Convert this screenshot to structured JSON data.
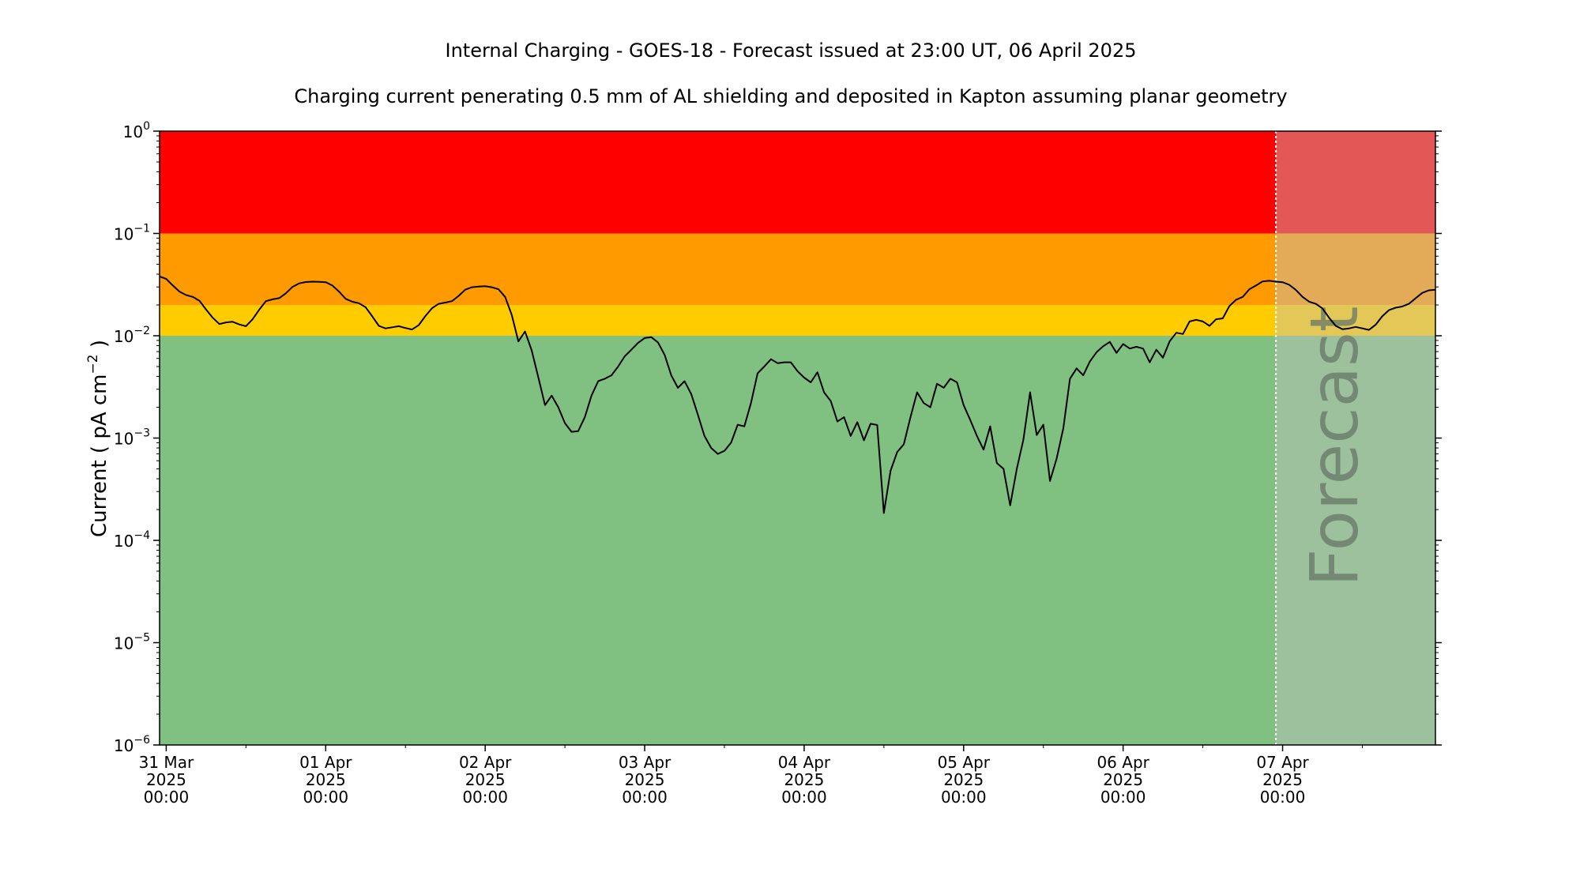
{
  "chart_data": {
    "type": "line",
    "title": "Internal Charging - GOES-18 - Forecast issued at 23:00 UT, 06 April 2025",
    "subtitle": "Charging current penerating 0.5 mm of AL shielding and deposited in Kapton assuming planar geometry",
    "ylabel": "Current ( pA cm",
    "ylabel_exp": "−2",
    "ylabel_close": " )",
    "yscale": "log",
    "ylim": [
      1e-06,
      1
    ],
    "xlim": [
      "2025-03-30 23:00",
      "2025-04-07 23:00"
    ],
    "y_ticks": [
      {
        "value": 1e-06,
        "base": "10",
        "exp": "−6"
      },
      {
        "value": 1e-05,
        "base": "10",
        "exp": "−5"
      },
      {
        "value": 0.0001,
        "base": "10",
        "exp": "−4"
      },
      {
        "value": 0.001,
        "base": "10",
        "exp": "−3"
      },
      {
        "value": 0.01,
        "base": "10",
        "exp": "−2"
      },
      {
        "value": 0.1,
        "base": "10",
        "exp": "−1"
      },
      {
        "value": 1,
        "base": "10",
        "exp": "0"
      }
    ],
    "x_ticks": [
      {
        "time": "2025-03-31 00:00",
        "label": [
          "31 Mar",
          "2025",
          "00:00"
        ]
      },
      {
        "time": "2025-04-01 00:00",
        "label": [
          "01 Apr",
          "2025",
          "00:00"
        ]
      },
      {
        "time": "2025-04-02 00:00",
        "label": [
          "02 Apr",
          "2025",
          "00:00"
        ]
      },
      {
        "time": "2025-04-03 00:00",
        "label": [
          "03 Apr",
          "2025",
          "00:00"
        ]
      },
      {
        "time": "2025-04-04 00:00",
        "label": [
          "04 Apr",
          "2025",
          "00:00"
        ]
      },
      {
        "time": "2025-04-05 00:00",
        "label": [
          "05 Apr",
          "2025",
          "00:00"
        ]
      },
      {
        "time": "2025-04-06 00:00",
        "label": [
          "06 Apr",
          "2025",
          "00:00"
        ]
      },
      {
        "time": "2025-04-07 00:00",
        "label": [
          "07 Apr",
          "2025",
          "00:00"
        ]
      }
    ],
    "bands": [
      {
        "from": 0.1,
        "to": 1,
        "color": "#ff0000"
      },
      {
        "from": 0.02,
        "to": 0.1,
        "color": "#ff9a00"
      },
      {
        "from": 0.01,
        "to": 0.02,
        "color": "#ffcc00"
      },
      {
        "from": 1e-06,
        "to": 0.01,
        "color": "#80c080"
      }
    ],
    "forecast_start": "2025-04-06 23:00",
    "forecast_overlay_color": "#c0c0c0",
    "forecast_label": "Forecast",
    "line_color": "#000000",
    "series": [
      {
        "x": [
          "2025-03-30 23:00",
          "2025-03-31 00:00",
          "2025-03-31 01:00",
          "2025-03-31 02:00",
          "2025-03-31 03:00",
          "2025-03-31 04:00",
          "2025-03-31 05:00",
          "2025-03-31 06:00",
          "2025-03-31 07:00",
          "2025-03-31 08:00",
          "2025-03-31 09:00",
          "2025-03-31 10:00",
          "2025-03-31 11:00",
          "2025-03-31 12:00",
          "2025-03-31 13:00",
          "2025-03-31 14:00",
          "2025-03-31 15:00",
          "2025-03-31 16:00",
          "2025-03-31 17:00",
          "2025-03-31 18:00",
          "2025-03-31 19:00",
          "2025-03-31 20:00",
          "2025-03-31 21:00",
          "2025-03-31 22:00",
          "2025-03-31 23:00",
          "2025-04-01 00:00",
          "2025-04-01 01:00",
          "2025-04-01 02:00",
          "2025-04-01 03:00",
          "2025-04-01 04:00",
          "2025-04-01 05:00",
          "2025-04-01 06:00",
          "2025-04-01 07:00",
          "2025-04-01 08:00",
          "2025-04-01 09:00",
          "2025-04-01 10:00",
          "2025-04-01 11:00",
          "2025-04-01 12:00",
          "2025-04-01 13:00",
          "2025-04-01 14:00",
          "2025-04-01 15:00",
          "2025-04-01 16:00",
          "2025-04-01 17:00",
          "2025-04-01 18:00",
          "2025-04-01 19:00",
          "2025-04-01 20:00",
          "2025-04-01 21:00",
          "2025-04-01 22:00",
          "2025-04-01 23:00",
          "2025-04-02 00:00",
          "2025-04-02 01:00",
          "2025-04-02 02:00",
          "2025-04-02 03:00",
          "2025-04-02 04:00",
          "2025-04-02 05:00",
          "2025-04-02 06:00",
          "2025-04-02 07:00",
          "2025-04-02 08:00",
          "2025-04-02 09:00",
          "2025-04-02 10:00",
          "2025-04-02 11:00",
          "2025-04-02 12:00",
          "2025-04-02 13:00",
          "2025-04-02 14:00",
          "2025-04-02 15:00",
          "2025-04-02 16:00",
          "2025-04-02 17:00",
          "2025-04-02 18:00",
          "2025-04-02 19:00",
          "2025-04-02 20:00",
          "2025-04-02 21:00",
          "2025-04-02 22:00",
          "2025-04-02 23:00",
          "2025-04-03 00:00",
          "2025-04-03 01:00",
          "2025-04-03 02:00",
          "2025-04-03 03:00",
          "2025-04-03 04:00",
          "2025-04-03 05:00",
          "2025-04-03 06:00",
          "2025-04-03 07:00",
          "2025-04-03 08:00",
          "2025-04-03 09:00",
          "2025-04-03 10:00",
          "2025-04-03 11:00",
          "2025-04-03 12:00",
          "2025-04-03 13:00",
          "2025-04-03 14:00",
          "2025-04-03 15:00",
          "2025-04-03 16:00",
          "2025-04-03 17:00",
          "2025-04-03 18:00",
          "2025-04-03 19:00",
          "2025-04-03 20:00",
          "2025-04-03 21:00",
          "2025-04-03 22:00",
          "2025-04-03 23:00",
          "2025-04-04 00:00",
          "2025-04-04 01:00",
          "2025-04-04 02:00",
          "2025-04-04 03:00",
          "2025-04-04 04:00",
          "2025-04-04 05:00",
          "2025-04-04 06:00",
          "2025-04-04 07:00",
          "2025-04-04 08:00",
          "2025-04-04 09:00",
          "2025-04-04 10:00",
          "2025-04-04 11:00",
          "2025-04-04 12:00",
          "2025-04-04 13:00",
          "2025-04-04 14:00",
          "2025-04-04 15:00",
          "2025-04-04 16:00",
          "2025-04-04 17:00",
          "2025-04-04 18:00",
          "2025-04-04 19:00",
          "2025-04-04 20:00",
          "2025-04-04 21:00",
          "2025-04-04 22:00",
          "2025-04-04 23:00",
          "2025-04-05 00:00",
          "2025-04-05 01:00",
          "2025-04-05 02:00",
          "2025-04-05 03:00",
          "2025-04-05 04:00",
          "2025-04-05 05:00",
          "2025-04-05 06:00",
          "2025-04-05 07:00",
          "2025-04-05 08:00",
          "2025-04-05 09:00",
          "2025-04-05 10:00",
          "2025-04-05 11:00",
          "2025-04-05 12:00",
          "2025-04-05 13:00",
          "2025-04-05 14:00",
          "2025-04-05 15:00",
          "2025-04-05 16:00",
          "2025-04-05 17:00",
          "2025-04-05 18:00",
          "2025-04-05 19:00",
          "2025-04-05 20:00",
          "2025-04-05 21:00",
          "2025-04-05 22:00",
          "2025-04-05 23:00",
          "2025-04-06 00:00",
          "2025-04-06 01:00",
          "2025-04-06 02:00",
          "2025-04-06 03:00",
          "2025-04-06 04:00",
          "2025-04-06 05:00",
          "2025-04-06 06:00",
          "2025-04-06 07:00",
          "2025-04-06 08:00",
          "2025-04-06 09:00",
          "2025-04-06 10:00",
          "2025-04-06 11:00",
          "2025-04-06 12:00",
          "2025-04-06 13:00",
          "2025-04-06 14:00",
          "2025-04-06 15:00",
          "2025-04-06 16:00",
          "2025-04-06 17:00",
          "2025-04-06 18:00",
          "2025-04-06 19:00",
          "2025-04-06 20:00",
          "2025-04-06 21:00",
          "2025-04-06 22:00",
          "2025-04-06 23:00",
          "2025-04-07 00:00",
          "2025-04-07 01:00",
          "2025-04-07 02:00",
          "2025-04-07 03:00",
          "2025-04-07 04:00",
          "2025-04-07 05:00",
          "2025-04-07 06:00",
          "2025-04-07 07:00",
          "2025-04-07 08:00",
          "2025-04-07 09:00",
          "2025-04-07 10:00",
          "2025-04-07 11:00",
          "2025-04-07 12:00",
          "2025-04-07 13:00",
          "2025-04-07 14:00",
          "2025-04-07 15:00",
          "2025-04-07 16:00",
          "2025-04-07 17:00",
          "2025-04-07 18:00",
          "2025-04-07 19:00",
          "2025-04-07 20:00",
          "2025-04-07 21:00",
          "2025-04-07 22:00",
          "2025-04-07 23:00"
        ],
        "y": [
          0.038,
          0.036,
          0.031,
          0.027,
          0.025,
          0.024,
          0.022,
          0.018,
          0.015,
          0.013,
          0.0135,
          0.0137,
          0.0129,
          0.0124,
          0.0145,
          0.018,
          0.0218,
          0.0227,
          0.0233,
          0.026,
          0.03,
          0.0325,
          0.0335,
          0.0338,
          0.0337,
          0.0334,
          0.031,
          0.027,
          0.023,
          0.0215,
          0.0208,
          0.019,
          0.0155,
          0.0125,
          0.0118,
          0.0121,
          0.0124,
          0.0119,
          0.0115,
          0.0127,
          0.0156,
          0.0186,
          0.0205,
          0.0211,
          0.0218,
          0.0245,
          0.0282,
          0.0298,
          0.0302,
          0.0305,
          0.0298,
          0.0285,
          0.024,
          0.016,
          0.0088,
          0.011,
          0.0072,
          0.0039,
          0.0021,
          0.0026,
          0.002,
          0.0014,
          0.00115,
          0.00117,
          0.0016,
          0.0026,
          0.0036,
          0.0038,
          0.0041,
          0.005,
          0.0063,
          0.0073,
          0.0085,
          0.0095,
          0.0097,
          0.0086,
          0.0065,
          0.0041,
          0.0031,
          0.0036,
          0.0027,
          0.0017,
          0.00105,
          0.0008,
          0.0007,
          0.00075,
          0.0009,
          0.00135,
          0.0013,
          0.0022,
          0.0043,
          0.005,
          0.0059,
          0.0054,
          0.0055,
          0.0055,
          0.0045,
          0.0039,
          0.0035,
          0.0044,
          0.0028,
          0.0023,
          0.00145,
          0.0016,
          0.00105,
          0.00143,
          0.00095,
          0.00138,
          0.00134,
          0.000185,
          0.00048,
          0.00073,
          0.00087,
          0.0016,
          0.0028,
          0.0022,
          0.002,
          0.0034,
          0.0031,
          0.0038,
          0.0035,
          0.0021,
          0.0015,
          0.00105,
          0.00077,
          0.0013,
          0.00057,
          0.0005,
          0.00022,
          0.0005,
          0.00097,
          0.0028,
          0.00107,
          0.00135,
          0.00038,
          0.00063,
          0.00125,
          0.0038,
          0.0048,
          0.0041,
          0.0056,
          0.0069,
          0.0079,
          0.0087,
          0.0068,
          0.0083,
          0.0075,
          0.0078,
          0.0075,
          0.0055,
          0.0073,
          0.0061,
          0.0088,
          0.0107,
          0.0104,
          0.0138,
          0.0143,
          0.0138,
          0.0125,
          0.0145,
          0.0148,
          0.0195,
          0.0225,
          0.024,
          0.0285,
          0.031,
          0.034,
          0.0345,
          0.0338,
          0.0334,
          0.0315,
          0.028,
          0.024,
          0.0215,
          0.0205,
          0.0185,
          0.015,
          0.0125,
          0.0116,
          0.0118,
          0.0122,
          0.0118,
          0.0114,
          0.0128,
          0.0155,
          0.0178,
          0.0188,
          0.0193,
          0.0205,
          0.0232,
          0.0262,
          0.0278,
          0.0282
        ]
      }
    ]
  }
}
